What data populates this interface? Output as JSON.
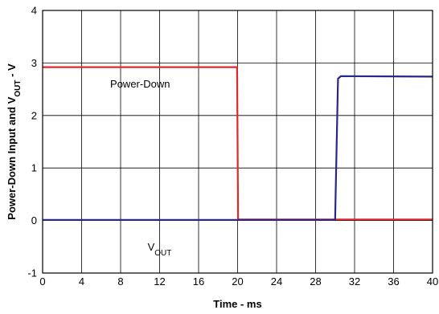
{
  "chart_data": {
    "type": "line",
    "xlabel": "Time - ms",
    "ylabel": {
      "parts": [
        {
          "text": "Power-Down Input and V",
          "sub": false
        },
        {
          "text": "OUT",
          "sub": true
        },
        {
          "text": " - V",
          "sub": false
        }
      ]
    },
    "xlim": [
      0,
      40
    ],
    "ylim": [
      -1,
      4
    ],
    "x_ticks": [
      "0",
      "4",
      "8",
      "12",
      "16",
      "20",
      "24",
      "28",
      "32",
      "36",
      "40"
    ],
    "y_ticks": [
      "-1",
      "0",
      "1",
      "2",
      "3",
      "4"
    ],
    "x_grid_step": 4,
    "y_grid_step": 1,
    "grid": true,
    "series": [
      {
        "id": "power-down",
        "color": "#e3262b",
        "x": [
          0,
          19.95,
          20.05,
          40
        ],
        "y": [
          2.92,
          2.92,
          0.02,
          0.02
        ]
      },
      {
        "id": "vout",
        "color": "#27288a",
        "x": [
          0,
          30.0,
          30.3,
          30.6,
          40
        ],
        "y": [
          0.01,
          0.01,
          2.7,
          2.75,
          2.74
        ]
      }
    ],
    "annotations": [
      {
        "id": "power-down-label",
        "x": 10,
        "y": 2.6,
        "parts": [
          {
            "text": "Power-Down",
            "sub": false
          }
        ]
      },
      {
        "id": "vout-label",
        "x": 12,
        "y": -0.5,
        "parts": [
          {
            "text": "V",
            "sub": false
          },
          {
            "text": "OUT",
            "sub": true
          }
        ]
      }
    ]
  }
}
